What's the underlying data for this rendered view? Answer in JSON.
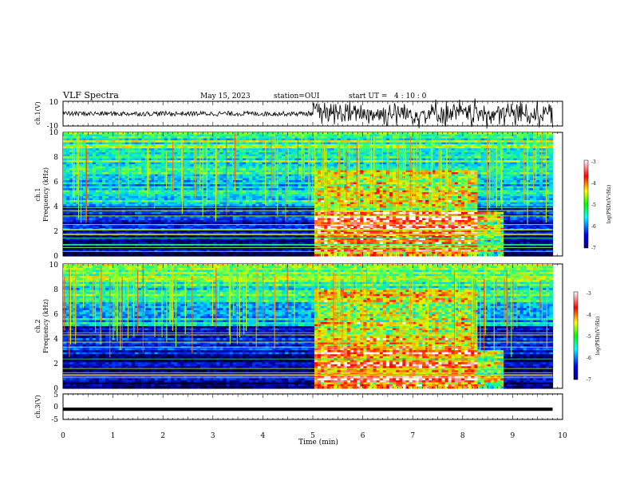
{
  "header": {
    "title": "VLF Spectra",
    "date": "May 15, 2023",
    "station": "station=OUI",
    "start_label": "start UT =",
    "start_time": "4 : 10 : 0"
  },
  "chart_data": [
    {
      "type": "line",
      "ylabel": "ch.1(V)",
      "ylim": [
        -10,
        10
      ],
      "yticks": [
        "10",
        "-10"
      ],
      "xlim": [
        0,
        10
      ],
      "series": [
        {
          "x": [
            0,
            5,
            5,
            9.8
          ],
          "amplitude": [
            1.2,
            1.2,
            5.5,
            5.5
          ]
        }
      ]
    },
    {
      "type": "heatmap",
      "ylabel": "ch.1\nFrequency (kHz)",
      "ylim": [
        0,
        10
      ],
      "yticks": [
        "0",
        "2",
        "4",
        "6",
        "8",
        "10"
      ],
      "xlim": [
        0,
        10
      ],
      "data_extent_min": 9.8,
      "colorbar": {
        "label": "log(PSD)(V²/Hz)",
        "range": [
          -7,
          -3
        ],
        "ticks": [
          "-3",
          "-4",
          "-5",
          "-6",
          "-7"
        ]
      },
      "features": {
        "quiet_noise_band_khz": [
          4.0,
          10.0
        ],
        "active_interval_min": [
          5.0,
          8.3
        ],
        "active_high_power_band_khz": [
          0.5,
          3.5
        ]
      }
    },
    {
      "type": "heatmap",
      "ylabel": "ch.2\nFrequency (kHz)",
      "ylim": [
        0,
        10
      ],
      "yticks": [
        "0",
        "2",
        "4",
        "6",
        "8",
        "10"
      ],
      "xlim": [
        0,
        10
      ],
      "data_extent_min": 9.8,
      "colorbar": {
        "label": "log(PSD)(V²/Hz)",
        "range": [
          -7,
          -3
        ],
        "ticks": [
          "-3",
          "-4",
          "-5",
          "-6",
          "-7"
        ]
      },
      "features": {
        "quiet_noise_band_khz": [
          5.0,
          10.0
        ],
        "active_interval_min": [
          5.0,
          8.3
        ],
        "active_high_power_band_khz": [
          0.5,
          3.0
        ]
      }
    },
    {
      "type": "line",
      "ylabel": "ch.3(V)",
      "ylim": [
        -5,
        5
      ],
      "yticks": [
        "5",
        "0",
        "-5"
      ],
      "xlim": [
        0,
        10
      ],
      "series": [
        {
          "x": [
            0,
            9.8
          ],
          "y": [
            -1,
            -1
          ]
        }
      ]
    }
  ],
  "xaxis": {
    "label": "Time (min)",
    "ticks": [
      "0",
      "1",
      "2",
      "3",
      "4",
      "5",
      "6",
      "7",
      "8",
      "9",
      "10"
    ]
  },
  "colors": {
    "bg": "#ffffff",
    "ink": "#000000"
  }
}
